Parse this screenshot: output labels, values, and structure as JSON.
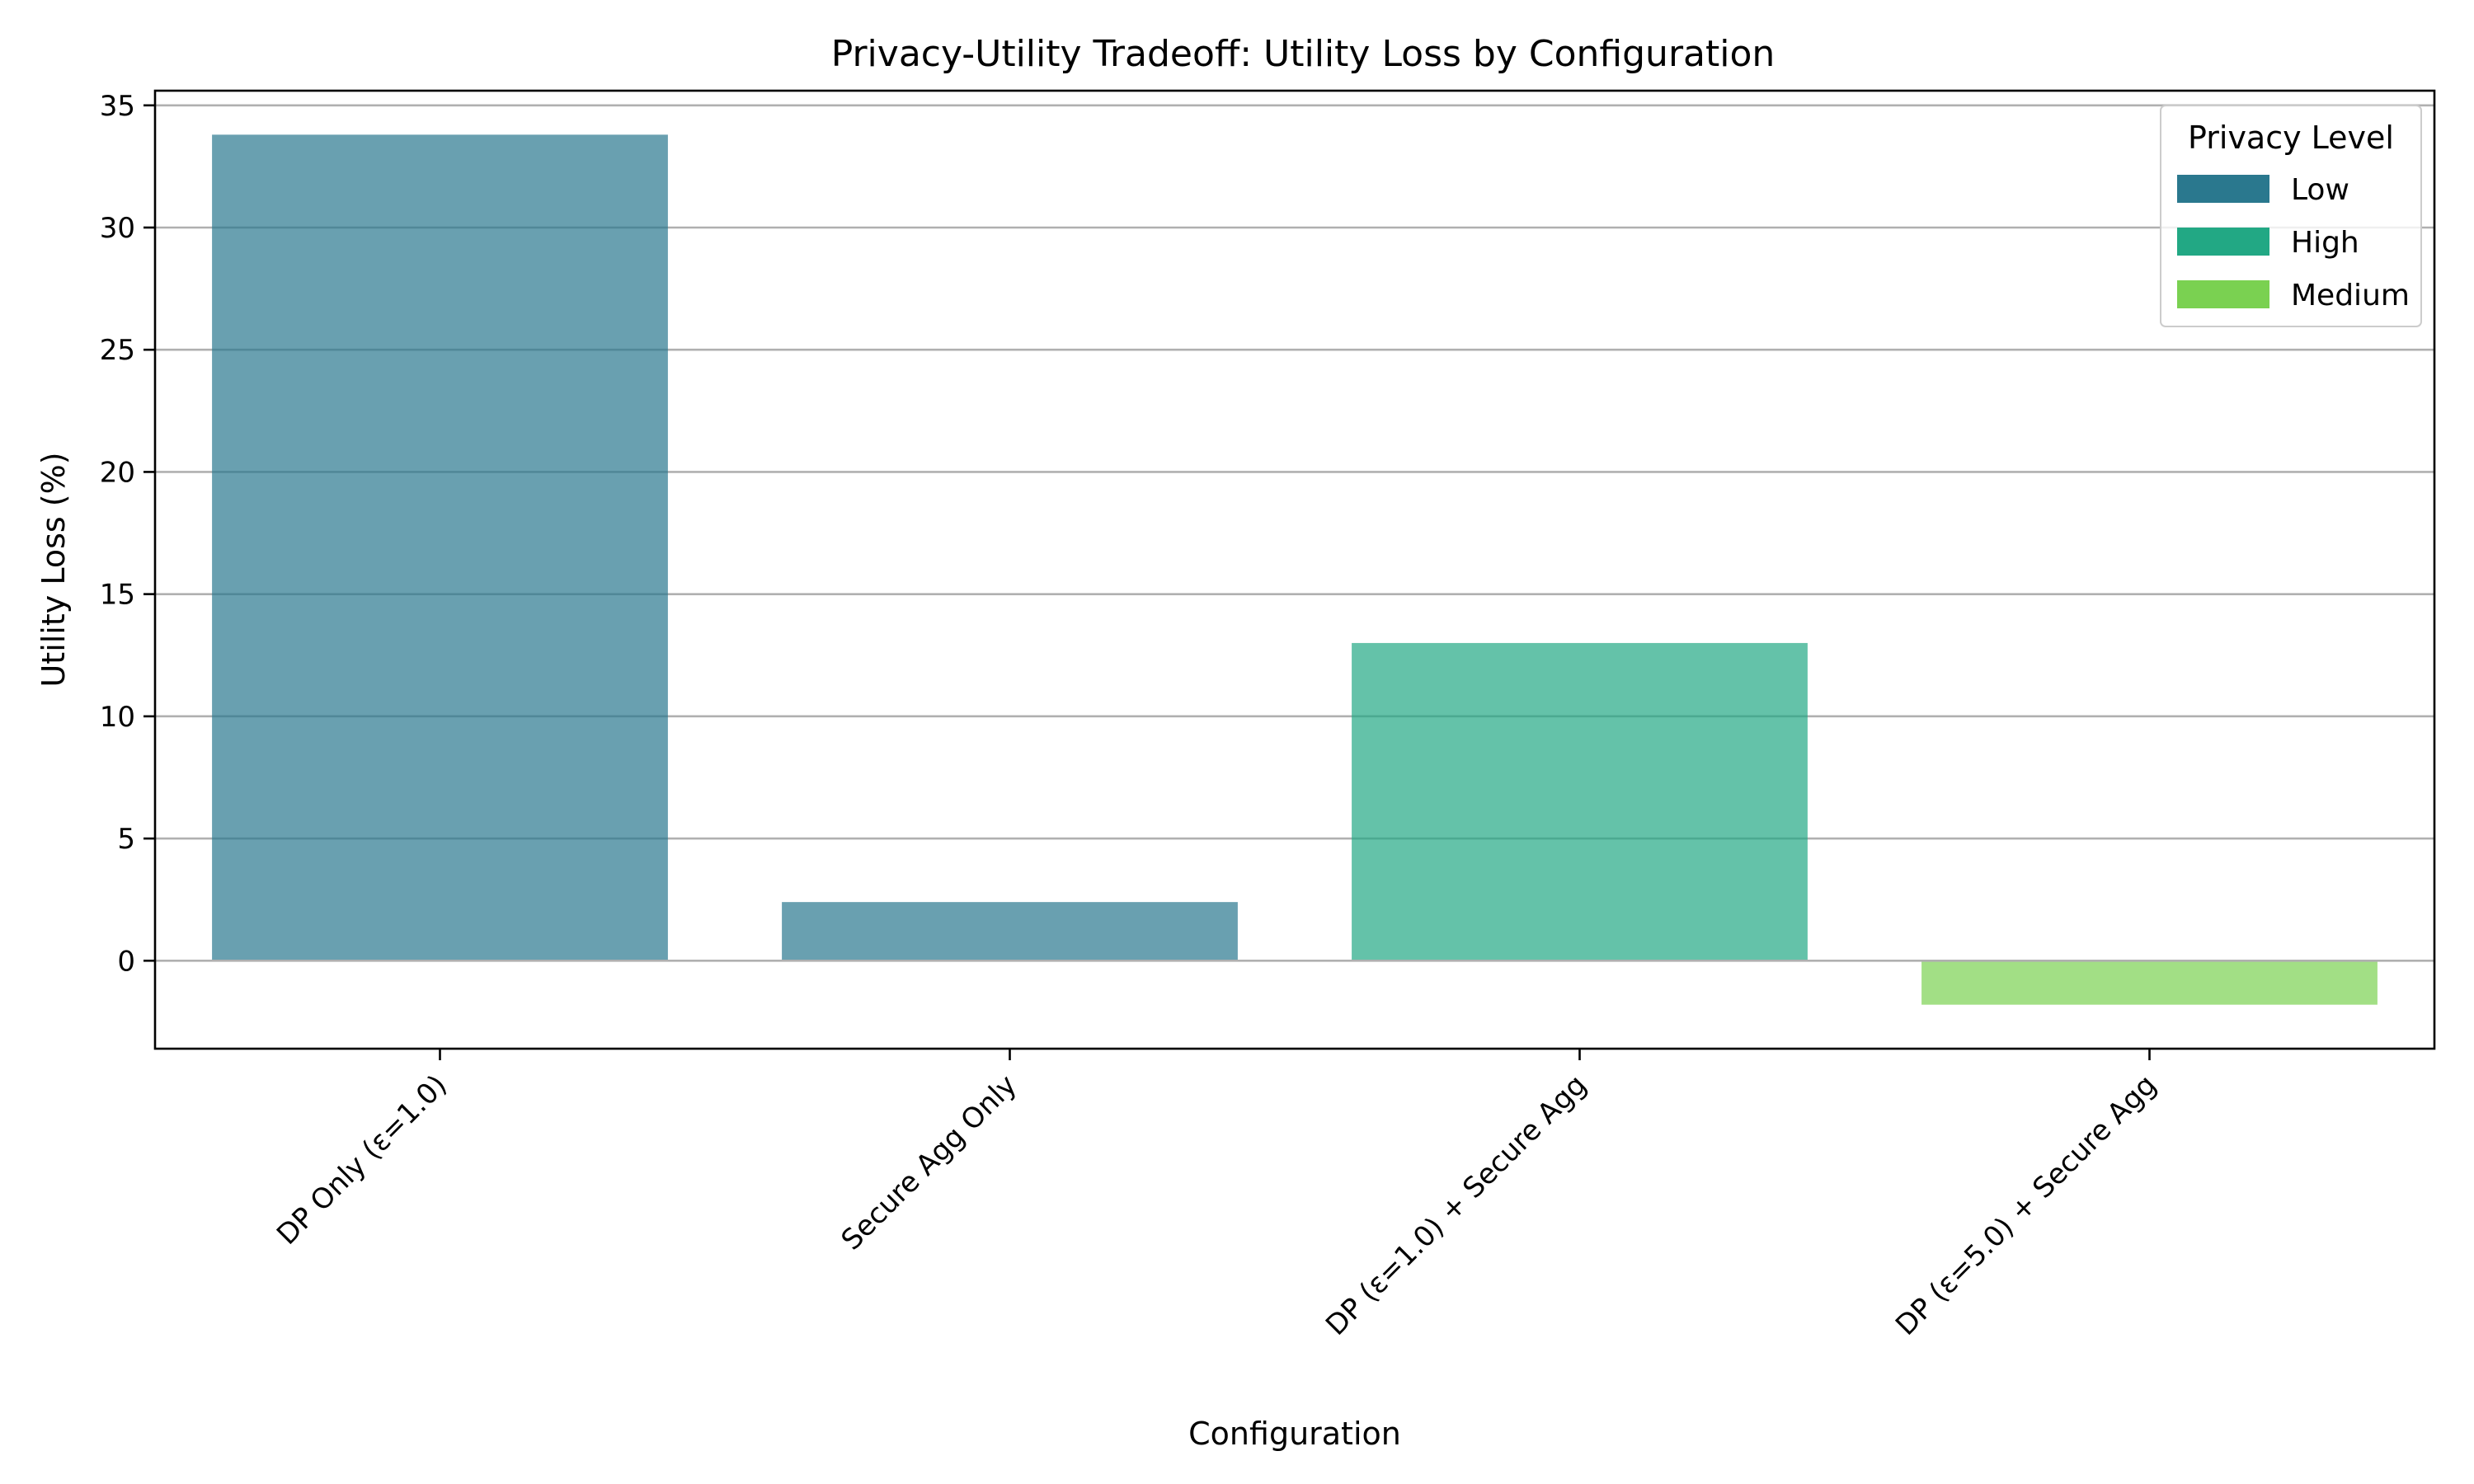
{
  "chart_data": {
    "type": "bar",
    "title": "Privacy-Utility Tradeoff: Utility Loss by Configuration",
    "xlabel": "Configuration",
    "ylabel": "Utility Loss (%)",
    "ylim": [
      -3.6,
      35.6
    ],
    "yticks": [
      0,
      5,
      10,
      15,
      20,
      25,
      30,
      35
    ],
    "ytick_labels": [
      "0",
      "5",
      "10",
      "15",
      "20",
      "25",
      "30",
      "35"
    ],
    "grid": "horizontal",
    "categories": [
      "DP Only (ε=1.0)",
      "Secure Agg Only",
      "DP (ε=1.0) + Secure Agg",
      "DP (ε=5.0) + Secure Agg"
    ],
    "values": [
      33.8,
      2.4,
      13.0,
      -1.8
    ],
    "bar_privacy_level": [
      "Low",
      "Low",
      "High",
      "Medium"
    ],
    "legend": {
      "title": "Privacy Level",
      "position": "top-right",
      "entries": [
        {
          "label": "Low",
          "color": "#2a788e"
        },
        {
          "label": "High",
          "color": "#22a884"
        },
        {
          "label": "Medium",
          "color": "#7ad151"
        }
      ]
    },
    "bar_opacity": 0.7
  }
}
